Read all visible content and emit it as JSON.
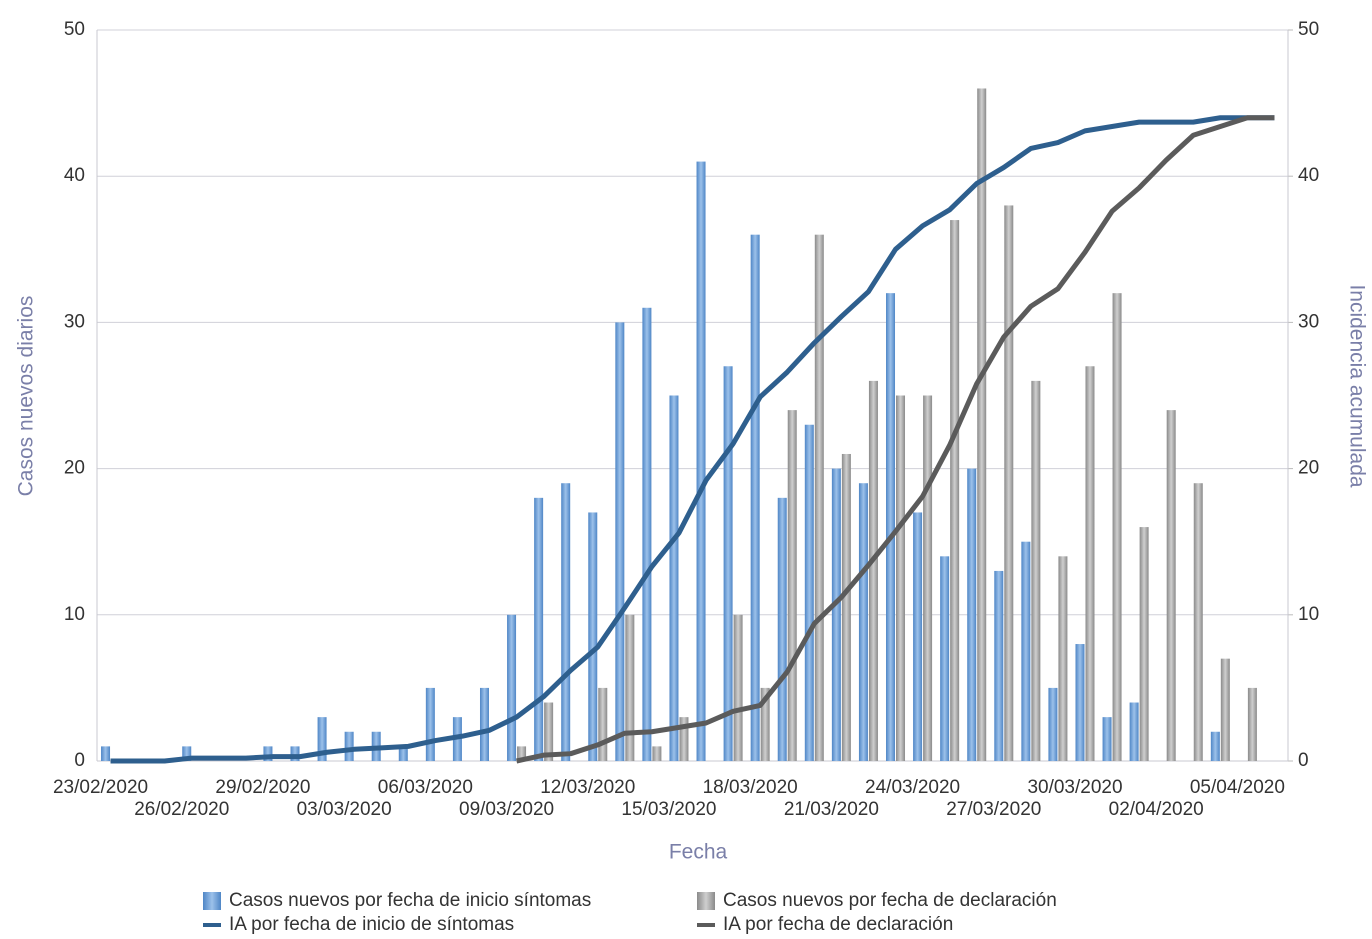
{
  "chart_data": {
    "type": "bar",
    "categories": [
      "23/02/2020",
      null,
      null,
      "26/02/2020",
      null,
      null,
      "29/02/2020",
      null,
      null,
      "03/03/2020",
      null,
      null,
      "06/03/2020",
      null,
      null,
      "09/03/2020",
      null,
      null,
      "12/03/2020",
      null,
      null,
      "15/03/2020",
      null,
      null,
      "18/03/2020",
      null,
      null,
      "21/03/2020",
      null,
      null,
      "24/03/2020",
      null,
      null,
      "27/03/2020",
      null,
      null,
      "30/03/2020",
      null,
      null,
      "02/04/2020",
      null,
      null,
      "05/04/2020",
      null
    ],
    "x_label": "Fecha",
    "y_label": "Casos nuevos diarios",
    "y2_label": "Incidencia acumulada",
    "ylim": [
      0,
      50
    ],
    "yticks": [
      0,
      10,
      20,
      30,
      40,
      50
    ],
    "y2lim": [
      0,
      50
    ],
    "y2ticks": [
      0,
      10,
      20,
      30,
      40,
      50
    ],
    "grid": true,
    "legend": "bottom",
    "series": [
      {
        "name": "Casos nuevos por fecha de inicio síntomas",
        "type": "bar",
        "color": "#6f9fd6",
        "values": [
          1,
          0,
          0,
          1,
          0,
          0,
          1,
          1,
          3,
          2,
          2,
          1,
          5,
          3,
          5,
          10,
          18,
          19,
          17,
          30,
          31,
          25,
          41,
          27,
          36,
          18,
          23,
          20,
          19,
          32,
          17,
          14,
          20,
          13,
          15,
          5,
          8,
          3,
          4,
          0,
          0,
          2,
          0,
          0
        ]
      },
      {
        "name": "Casos nuevos por fecha de declaración",
        "type": "bar",
        "color": "#a3a3a3",
        "values": [
          0,
          0,
          0,
          0,
          0,
          0,
          0,
          0,
          0,
          0,
          0,
          0,
          0,
          0,
          0,
          1,
          4,
          0,
          5,
          10,
          1,
          3,
          0,
          10,
          5,
          24,
          36,
          21,
          26,
          25,
          25,
          37,
          46,
          38,
          26,
          14,
          27,
          32,
          16,
          24,
          19,
          7,
          5,
          0
        ]
      },
      {
        "name": "IA por fecha de inicio de síntomas",
        "type": "line",
        "axis": "y2",
        "color": "#2e5f8e",
        "values": [
          0,
          0,
          0,
          0.2,
          0.2,
          0.2,
          0.3,
          0.3,
          0.6,
          0.8,
          0.9,
          1.0,
          1.4,
          1.7,
          2.1,
          3.0,
          4.4,
          6.2,
          7.8,
          10.5,
          13.3,
          15.6,
          19.2,
          21.7,
          24.9,
          26.6,
          28.6,
          30.4,
          32.1,
          35.0,
          36.6,
          37.7,
          39.5,
          40.6,
          41.9,
          42.3,
          43.1,
          43.4,
          43.7,
          43.7,
          43.7,
          44.0,
          44.0,
          44.0
        ]
      },
      {
        "name": "IA por fecha de declaración",
        "type": "line",
        "axis": "y2",
        "color": "#5b5b5b",
        "values": [
          null,
          null,
          null,
          null,
          null,
          null,
          null,
          null,
          null,
          null,
          null,
          null,
          null,
          null,
          null,
          0,
          0.4,
          0.5,
          1.1,
          1.9,
          2.0,
          2.3,
          2.6,
          3.4,
          3.8,
          6.1,
          9.4,
          11.2,
          13.4,
          15.7,
          18.1,
          21.6,
          25.8,
          29.0,
          31.1,
          32.3,
          34.8,
          37.6,
          39.2,
          41.1,
          42.8,
          43.4,
          44.0,
          44.0
        ]
      }
    ]
  }
}
